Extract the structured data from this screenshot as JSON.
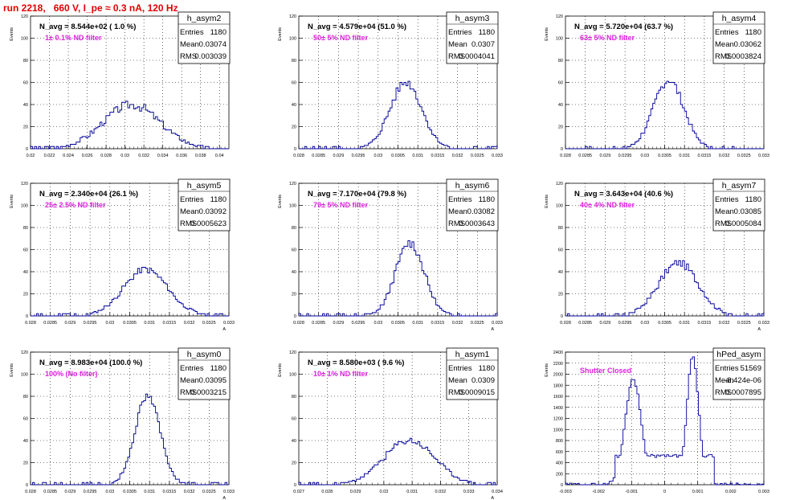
{
  "header": {
    "title": "run 2218,   660 V, I_pe ≈ 0.3 nA, 120 Hz"
  },
  "chart_data": [
    {
      "type": "histogram",
      "stats": {
        "name": "h_asym2",
        "entries": "1180",
        "mean": "0.03074",
        "rms": "0.003039"
      },
      "navg": "N_avg = 8.544e+02 ( 1.0 %)",
      "filter": "1± 0.1% ND filter",
      "ylabel": "Events",
      "xlabel": "",
      "xlim": [
        0.02,
        0.041
      ],
      "ylim": [
        0,
        120
      ],
      "xticks": [
        "0.02",
        "0.022",
        "0.024",
        "0.026",
        "0.028",
        "0.03",
        "0.032",
        "0.034",
        "0.036",
        "0.038",
        "0.04"
      ],
      "yticks": [
        "0",
        "20",
        "40",
        "60",
        "80",
        "100",
        "120"
      ],
      "peak_x": 0.0307,
      "peak_y": 40,
      "sigma": 0.003,
      "noise": 8,
      "seed": 3
    },
    {
      "type": "histogram",
      "stats": {
        "name": "h_asym3",
        "entries": "1180",
        "mean": "0.0307",
        "rms": "0.0004041"
      },
      "navg": "N_avg = 4.579e+04 (51.0 %)",
      "filter": "50± 5% ND filter",
      "ylabel": "Events",
      "xlabel": "",
      "xlim": [
        0.028,
        0.033
      ],
      "ylim": [
        0,
        120
      ],
      "xticks": [
        "0.028",
        "0.0285",
        "0.029",
        "0.0295",
        "0.03",
        "0.0305",
        "0.031",
        "0.0315",
        "0.032",
        "0.0325",
        "0.033"
      ],
      "yticks": [
        "0",
        "20",
        "40",
        "60",
        "80",
        "100",
        "120"
      ],
      "peak_x": 0.0307,
      "peak_y": 60,
      "sigma": 0.0004,
      "noise": 8,
      "seed": 5
    },
    {
      "type": "histogram",
      "stats": {
        "name": "h_asym4",
        "entries": "1180",
        "mean": "0.03062",
        "rms": "0.0003824"
      },
      "navg": "N_avg = 5.720e+04 (63.7 %)",
      "filter": "63± 5% ND filter",
      "ylabel": "Events",
      "xlabel": "",
      "xlim": [
        0.028,
        0.033
      ],
      "ylim": [
        0,
        120
      ],
      "xticks": [
        "0.028",
        "0.0285",
        "0.029",
        "0.0295",
        "0.03",
        "0.0305",
        "0.031",
        "0.0315",
        "0.032",
        "0.0325",
        "0.033"
      ],
      "yticks": [
        "0",
        "20",
        "40",
        "60",
        "80",
        "100",
        "120"
      ],
      "peak_x": 0.0306,
      "peak_y": 62,
      "sigma": 0.00038,
      "noise": 8,
      "seed": 7
    },
    {
      "type": "histogram",
      "stats": {
        "name": "h_asym5",
        "entries": "1180",
        "mean": "0.03092",
        "rms": "0.0005623"
      },
      "navg": "N_avg = 2.340e+04 (26.1 %)",
      "filter": "25± 2.5% ND filter",
      "ylabel": "Events",
      "xlabel": "A",
      "xlim": [
        0.028,
        0.033
      ],
      "ylim": [
        0,
        120
      ],
      "xticks": [
        "0.028",
        "0.0285",
        "0.029",
        "0.0295",
        "0.03",
        "0.0305",
        "0.031",
        "0.0315",
        "0.032",
        "0.0325",
        "0.033"
      ],
      "yticks": [
        "0",
        "20",
        "40",
        "60",
        "80",
        "100",
        "120"
      ],
      "peak_x": 0.0309,
      "peak_y": 42,
      "sigma": 0.00056,
      "noise": 6,
      "seed": 11
    },
    {
      "type": "histogram",
      "stats": {
        "name": "h_asym6",
        "entries": "1180",
        "mean": "0.03082",
        "rms": "0.0003643"
      },
      "navg": "N_avg = 7.170e+04 (79.8 %)",
      "filter": "79± 5% ND filter",
      "ylabel": "Events",
      "xlabel": "A",
      "xlim": [
        0.028,
        0.033
      ],
      "ylim": [
        0,
        120
      ],
      "xticks": [
        "0.028",
        "0.0285",
        "0.029",
        "0.0295",
        "0.03",
        "0.0305",
        "0.031",
        "0.0315",
        "0.032",
        "0.0325",
        "0.033"
      ],
      "yticks": [
        "0",
        "20",
        "40",
        "60",
        "80",
        "100",
        "120"
      ],
      "peak_x": 0.0308,
      "peak_y": 66,
      "sigma": 0.00036,
      "noise": 8,
      "seed": 13
    },
    {
      "type": "histogram",
      "stats": {
        "name": "h_asym7",
        "entries": "1180",
        "mean": "0.03085",
        "rms": "0.0005084"
      },
      "navg": "N_avg = 3.643e+04 (40.6 %)",
      "filter": "40± 4% ND filter",
      "ylabel": "Events",
      "xlabel": "A",
      "xlim": [
        0.028,
        0.033
      ],
      "ylim": [
        0,
        120
      ],
      "xticks": [
        "0.028",
        "0.0285",
        "0.029",
        "0.0295",
        "0.03",
        "0.0305",
        "0.031",
        "0.0315",
        "0.032",
        "0.0325",
        "0.033"
      ],
      "yticks": [
        "0",
        "20",
        "40",
        "60",
        "80",
        "100",
        "120"
      ],
      "peak_x": 0.03085,
      "peak_y": 48,
      "sigma": 0.0005,
      "noise": 7,
      "seed": 17
    },
    {
      "type": "histogram",
      "stats": {
        "name": "h_asym0",
        "entries": "1180",
        "mean": "0.03095",
        "rms": "0.0003215"
      },
      "navg": "N_avg = 8.983e+04 (100.0 %)",
      "filter": "100% (No filter)",
      "ylabel": "Events",
      "xlabel": "A",
      "xlim": [
        0.028,
        0.033
      ],
      "ylim": [
        0,
        120
      ],
      "xticks": [
        "0.028",
        "0.0285",
        "0.029",
        "0.0295",
        "0.03",
        "0.0305",
        "0.031",
        "0.0315",
        "0.032",
        "0.0325",
        "0.033"
      ],
      "yticks": [
        "0",
        "20",
        "40",
        "60",
        "80",
        "100",
        "120"
      ],
      "peak_x": 0.03095,
      "peak_y": 80,
      "sigma": 0.00032,
      "noise": 7,
      "seed": 19
    },
    {
      "type": "histogram",
      "stats": {
        "name": "h_asym1",
        "entries": "1180",
        "mean": "0.0309",
        "rms": "0.0009015"
      },
      "navg": "N_avg = 8.580e+03 ( 9.6 %)",
      "filter": "10± 1% ND filter",
      "ylabel": "Events",
      "xlabel": "A",
      "xlim": [
        0.027,
        0.034
      ],
      "ylim": [
        0,
        120
      ],
      "xticks": [
        "0.027",
        "0.028",
        "0.029",
        "0.03",
        "0.031",
        "0.032",
        "0.033",
        "0.034"
      ],
      "yticks": [
        "0",
        "20",
        "40",
        "60",
        "80",
        "100",
        "120"
      ],
      "peak_x": 0.0309,
      "peak_y": 40,
      "sigma": 0.0009,
      "noise": 6,
      "seed": 23
    },
    {
      "type": "histogram",
      "stats": {
        "name": "hPed_asym",
        "entries": "51569",
        "mean": "-8.424e-06",
        "rms": "0.0007895"
      },
      "navg": "",
      "filter": "Shutter Closed",
      "ylabel": "Events",
      "xlabel": "",
      "xlim": [
        -0.003,
        0.003
      ],
      "ylim": [
        0,
        2400
      ],
      "xticks": [
        "-0.003",
        "-0.002",
        "-0.001",
        "0",
        "0.001",
        "0.002",
        "0.003"
      ],
      "yticks": [
        "0",
        "200",
        "400",
        "600",
        "800",
        "1000",
        "1200",
        "1400",
        "1600",
        "1800",
        "2000",
        "2200",
        "2400"
      ],
      "peak_x": 0,
      "peak_y": 0,
      "sigma": 0,
      "noise": 0,
      "seed": 29,
      "bimodal": [
        {
          "mu": -0.00095,
          "sigma": 0.00025,
          "amp": 1900
        },
        {
          "mu": 0.00085,
          "sigma": 0.00018,
          "amp": 2300
        }
      ],
      "baseline": 520
    }
  ]
}
